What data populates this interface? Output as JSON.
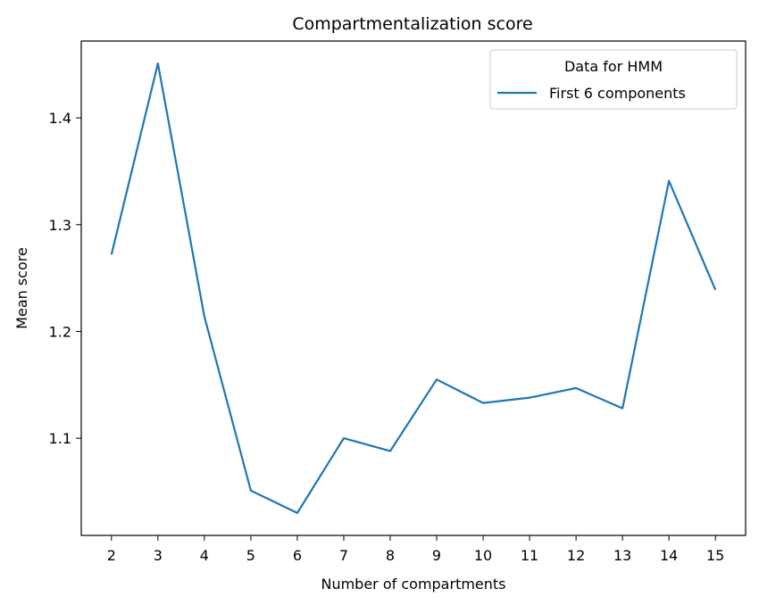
{
  "chart_data": {
    "type": "line",
    "title": "Compartmentalization score",
    "xlabel": "Number of compartments",
    "ylabel": "Mean score",
    "x": [
      2,
      3,
      4,
      5,
      6,
      7,
      8,
      9,
      10,
      11,
      12,
      13,
      14,
      15
    ],
    "xticks": [
      "2",
      "3",
      "4",
      "5",
      "6",
      "7",
      "8",
      "9",
      "10",
      "11",
      "12",
      "13",
      "14",
      "15"
    ],
    "yticks": [
      "1.1",
      "1.2",
      "1.3",
      "1.4"
    ],
    "ytick_values": [
      1.1,
      1.2,
      1.3,
      1.4
    ],
    "xlim": [
      1.35,
      15.65
    ],
    "ylim": [
      1.009,
      1.472
    ],
    "grid": false,
    "legend": {
      "title": "Data for HMM",
      "placement": "top-right"
    },
    "series": [
      {
        "name": "First 6 components",
        "color": "#1f77b4",
        "values": [
          1.272,
          1.451,
          1.214,
          1.051,
          1.03,
          1.1,
          1.088,
          1.155,
          1.133,
          1.138,
          1.147,
          1.128,
          1.341,
          1.239
        ]
      }
    ]
  }
}
